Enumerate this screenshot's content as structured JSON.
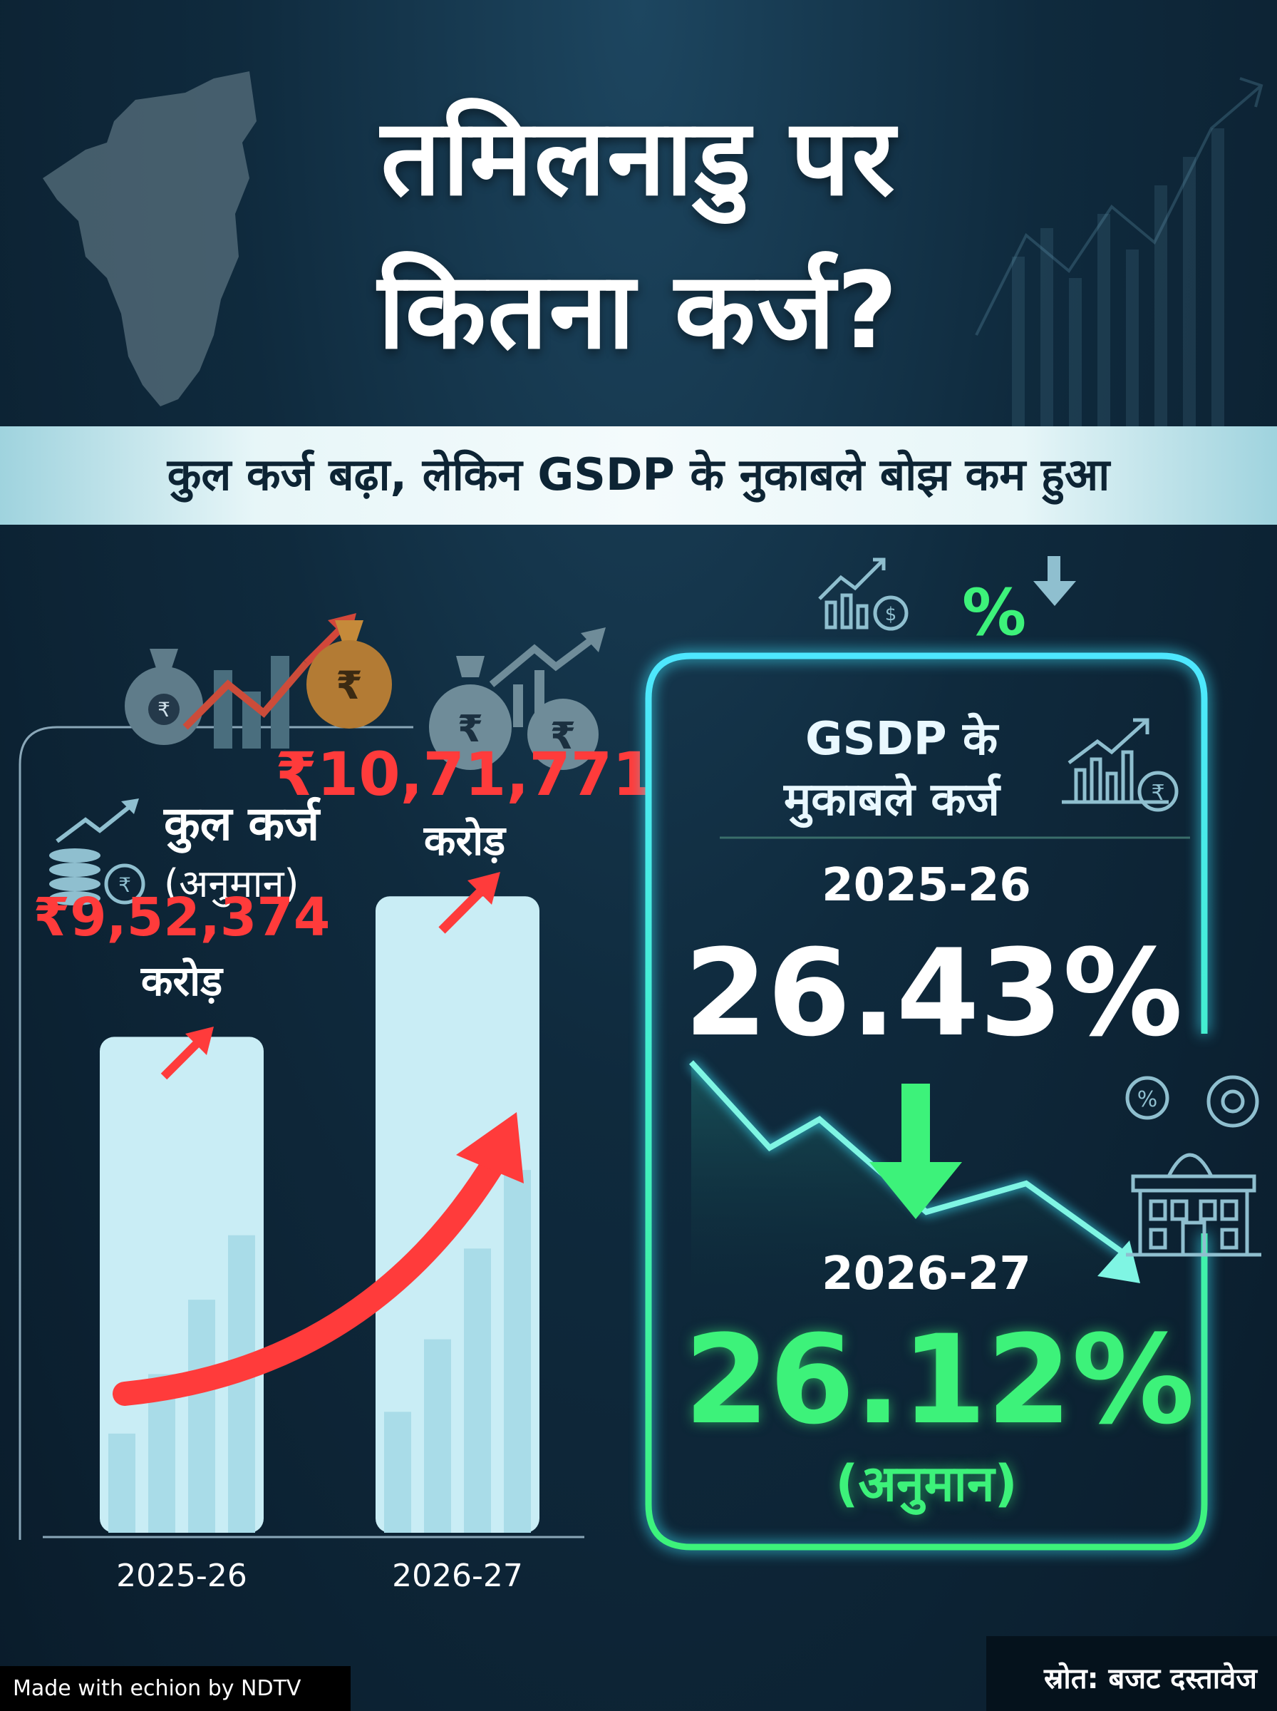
{
  "title_line1": "तमिलनाडु पर",
  "title_line2": "कितना कर्ज?",
  "subtitle": "कुल कर्ज बढ़ा, लेकिन GSDP के नुकाबले बोझ कम हुआ",
  "left_panel": {
    "heading": "कुल कर्ज",
    "heading_note": "(अनुमान)"
  },
  "right_panel": {
    "heading_line1": "GSDP के",
    "heading_line2": "मुकाबले कर्ज",
    "year1": "2025-26",
    "value1": "26.43%",
    "year2": "2026-27",
    "value2": "26.12%",
    "value2_note": "(अनुमान)"
  },
  "footer": {
    "made_with": "Made with echion by NDTV",
    "source": "स्रोत: बजट दस्तावेज"
  },
  "colors": {
    "increase": "#ff3b3b",
    "decrease": "#3df27a",
    "bar_fill": "#c9edf5",
    "panel_glow": "#3ee8ff"
  },
  "icons": [
    "money-bag-icon",
    "rising-chart-icon",
    "coin-stack-icon",
    "percent-down-icon",
    "government-building-icon",
    "gear-icon"
  ],
  "chart_data": {
    "type": "bar",
    "categories": [
      "2025-26",
      "2026-27"
    ],
    "values": [
      952374,
      1071771
    ],
    "value_labels": [
      "₹9,52,374",
      "₹10,71,771"
    ],
    "unit_label": "करोड़",
    "ylim": [
      0,
      1100000
    ]
  }
}
